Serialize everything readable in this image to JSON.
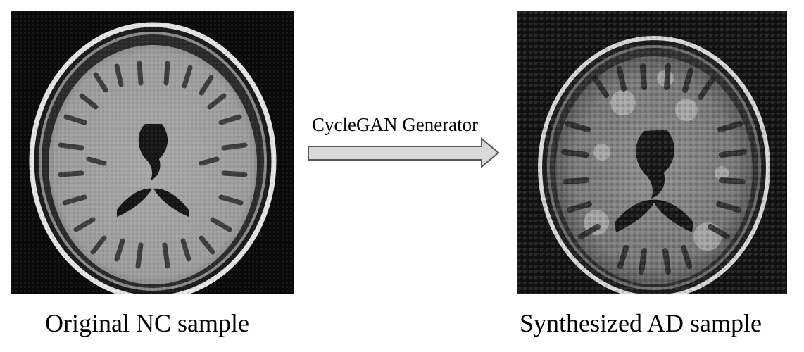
{
  "left_image": {
    "caption": "Original NC sample"
  },
  "right_image": {
    "caption": "Synthesized AD sample"
  },
  "arrow": {
    "label": "CycleGAN Generator",
    "fill": "#d9d9d9",
    "stroke": "#595959"
  }
}
